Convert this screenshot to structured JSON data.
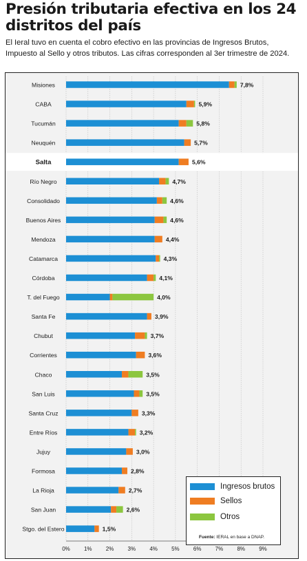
{
  "title": "Presión tributaria efectiva en los 24 distritos del país",
  "subtitle": "El Ieral tuvo en cuenta el cobro efectivo en las provincias de Ingresos Brutos, Impuesto al Sello y otros tributos. Las cifras corresponden al 3er trimestre de 2024.",
  "legend": {
    "items": [
      {
        "label": "Ingresos brutos",
        "color": "#1d8fd4"
      },
      {
        "label": "Sellos",
        "color": "#ef7d22"
      },
      {
        "label": "Otros",
        "color": "#8cc63f"
      }
    ],
    "source_label": "Fuente:",
    "source_text": "IERAL en base a DNAP."
  },
  "chart_data": {
    "type": "bar",
    "orientation": "horizontal",
    "stacked": true,
    "xlim": [
      0,
      9
    ],
    "x_ticks": [
      "0%",
      "1%",
      "2%",
      "3%",
      "4%",
      "5%",
      "6%",
      "7%",
      "8%",
      "9%"
    ],
    "highlighted_category": "Salta",
    "categories": [
      "Misiones",
      "CABA",
      "Tucumán",
      "Neuquén",
      "Salta",
      "Río Negro",
      "Consolidado",
      "Buenos Aires",
      "Mendoza",
      "Catamarca",
      "Córdoba",
      "T. del Fuego",
      "Santa Fe",
      "Chubut",
      "Corrientes",
      "Chaco",
      "San Luis",
      "Santa Cruz",
      "Entre Ríos",
      "Jujuy",
      "Formosa",
      "La Rioja",
      "San Juan",
      "Stgo. del Estero"
    ],
    "totals_labels": [
      "7,8%",
      "5,9%",
      "5,8%",
      "5,7%",
      "5,6%",
      "4,7%",
      "4,6%",
      "4,6%",
      "4,4%",
      "4,3%",
      "4,1%",
      "4,0%",
      "3,9%",
      "3,7%",
      "3,6%",
      "3,5%",
      "3,5%",
      "3,3%",
      "3,2%",
      "3,0%",
      "2,8%",
      "2,7%",
      "2,6%",
      "1,5%"
    ],
    "series": [
      {
        "name": "Ingresos brutos",
        "color": "#1d8fd4",
        "values": [
          7.45,
          5.5,
          5.15,
          5.4,
          5.15,
          4.25,
          4.15,
          4.05,
          4.05,
          4.1,
          3.7,
          2.0,
          3.7,
          3.15,
          3.2,
          2.55,
          3.1,
          3.0,
          2.85,
          2.75,
          2.55,
          2.4,
          2.05,
          1.3
        ]
      },
      {
        "name": "Sellos",
        "color": "#ef7d22",
        "values": [
          0.25,
          0.35,
          0.35,
          0.3,
          0.45,
          0.3,
          0.25,
          0.4,
          0.35,
          0.15,
          0.3,
          0.12,
          0.2,
          0.45,
          0.4,
          0.3,
          0.25,
          0.3,
          0.3,
          0.3,
          0.25,
          0.3,
          0.25,
          0.2
        ]
      },
      {
        "name": "Otros",
        "color": "#8cc63f",
        "values": [
          0.1,
          0.05,
          0.3,
          0.0,
          0.0,
          0.15,
          0.2,
          0.15,
          0.0,
          0.05,
          0.1,
          1.88,
          0.0,
          0.1,
          0.0,
          0.65,
          0.15,
          0.0,
          0.05,
          0.0,
          0.0,
          0.0,
          0.3,
          0.0
        ]
      }
    ]
  }
}
